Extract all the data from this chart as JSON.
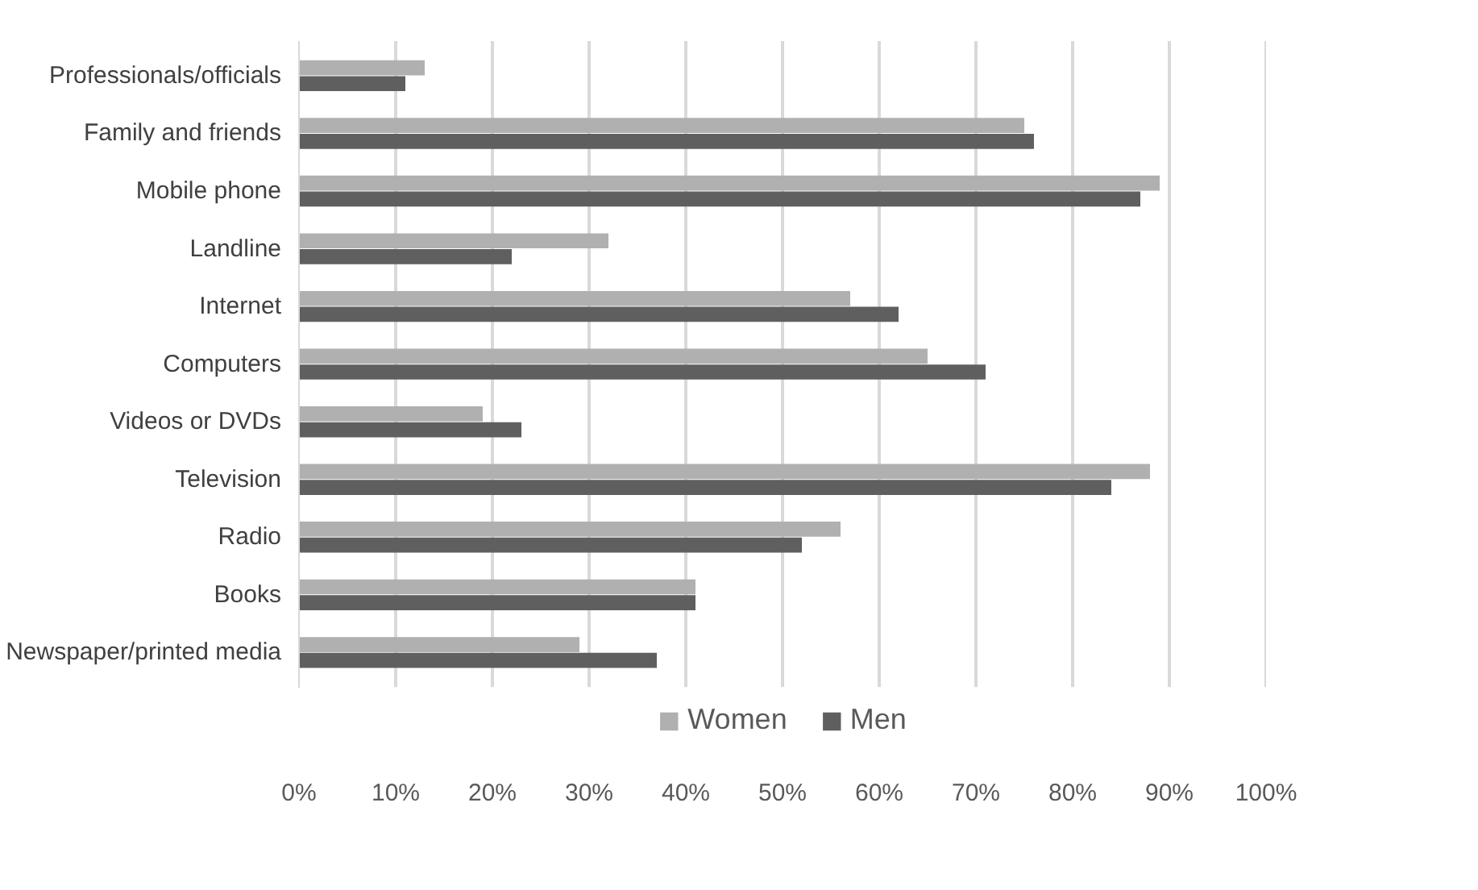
{
  "chart_data": {
    "type": "bar",
    "orientation": "horizontal",
    "categories": [
      "Professionals/officials",
      "Family and friends",
      "Mobile phone",
      "Landline",
      "Internet",
      "Computers",
      "Videos or DVDs",
      "Television",
      "Radio",
      "Books",
      "Newspaper/printed media"
    ],
    "series": [
      {
        "name": "Women",
        "color": "#b0b0b0",
        "values": [
          13,
          75,
          89,
          32,
          57,
          65,
          19,
          88,
          56,
          41,
          29
        ]
      },
      {
        "name": "Men",
        "color": "#5f5f5f",
        "values": [
          11,
          76,
          87,
          22,
          62,
          71,
          23,
          84,
          52,
          41,
          37
        ]
      }
    ],
    "xlim": [
      0,
      100
    ],
    "xticks": [
      {
        "value": 0,
        "label": "0%"
      },
      {
        "value": 10,
        "label": "10%"
      },
      {
        "value": 20,
        "label": "20%"
      },
      {
        "value": 30,
        "label": "30%"
      },
      {
        "value": 40,
        "label": "40%"
      },
      {
        "value": 50,
        "label": "50%"
      },
      {
        "value": 60,
        "label": "60%"
      },
      {
        "value": 70,
        "label": "70%"
      },
      {
        "value": 80,
        "label": "80%"
      },
      {
        "value": 90,
        "label": "90%"
      },
      {
        "value": 100,
        "label": "100%"
      }
    ],
    "grid": "x",
    "legend": "bottom"
  }
}
